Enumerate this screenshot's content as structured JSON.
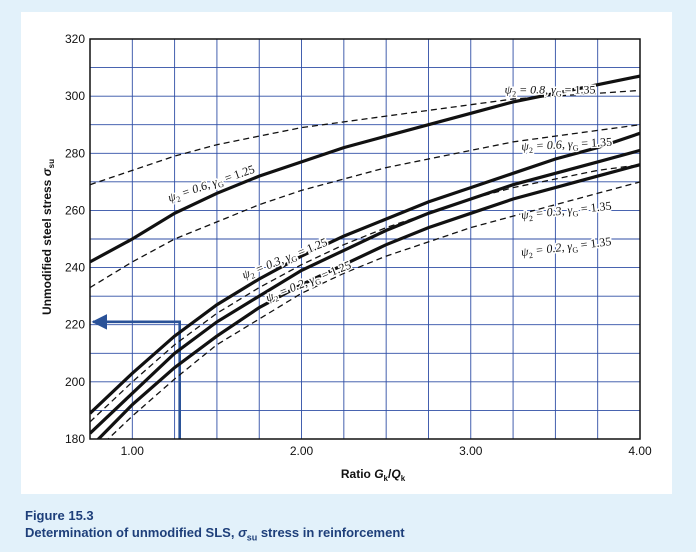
{
  "chart_data": {
    "type": "line",
    "title": "",
    "xlabel": "Ratio G_k/Q_k",
    "ylabel": "Unmodified steel stress σ_su",
    "xlim": [
      0.75,
      4.0
    ],
    "ylim": [
      180,
      320
    ],
    "x_ticks": [
      1.0,
      2.0,
      3.0,
      4.0
    ],
    "x_tick_labels": [
      "1.00",
      "2.00",
      "3.00",
      "4.00"
    ],
    "y_ticks": [
      180,
      200,
      220,
      240,
      260,
      280,
      300,
      320
    ],
    "y_tick_labels": [
      "180",
      "200",
      "220",
      "240",
      "260",
      "280",
      "300",
      "320"
    ],
    "grid": true,
    "x_minor_step": 0.25,
    "y_minor_step": 10,
    "series": [
      {
        "name": "ψ2 = 0.8, γG = 1.35",
        "style": "solid",
        "x": [
          0.75,
          1.0,
          1.25,
          1.5,
          1.75,
          2.0,
          2.25,
          2.5,
          2.75,
          3.0,
          3.25,
          3.5,
          3.75,
          4.0
        ],
        "y": [
          242,
          250,
          259,
          266,
          272,
          277,
          282,
          286,
          290,
          294,
          298,
          301,
          304,
          307
        ]
      },
      {
        "name": "ψ2 = 0.6, γG = 1.25",
        "style": "dashed",
        "x": [
          0.75,
          1.0,
          1.25,
          1.5,
          1.75,
          2.0,
          2.25,
          2.5,
          2.75,
          3.0,
          3.25,
          3.5,
          3.75,
          4.0
        ],
        "y": [
          269,
          274,
          279,
          283,
          286,
          289,
          291,
          293,
          295,
          297,
          299,
          300,
          301,
          302
        ]
      },
      {
        "name": "ψ2 = 0.6, γG = 1.35",
        "style": "solid",
        "x": [
          0.75,
          1.0,
          1.25,
          1.5,
          1.75,
          2.0,
          2.25,
          2.5,
          2.75,
          3.0,
          3.25,
          3.5,
          3.75,
          4.0
        ],
        "y": [
          189,
          203,
          216,
          227,
          236,
          244,
          251,
          257,
          263,
          268,
          273,
          278,
          282,
          287
        ]
      },
      {
        "name": "ψ2 = 0.3, γG = 1.25",
        "style": "dashed",
        "x": [
          0.75,
          1.0,
          1.25,
          1.5,
          1.75,
          2.0,
          2.25,
          2.5,
          2.75,
          3.0,
          3.25,
          3.5,
          3.75,
          4.0
        ],
        "y": [
          233,
          242,
          250,
          256,
          262,
          267,
          271,
          275,
          278,
          281,
          284,
          286,
          288,
          290
        ]
      },
      {
        "name": "ψ2 = 0.3, γG = 1.35",
        "style": "solid",
        "x": [
          0.75,
          1.0,
          1.25,
          1.5,
          1.75,
          2.0,
          2.25,
          2.5,
          2.75,
          3.0,
          3.25,
          3.5,
          3.75,
          4.0
        ],
        "y": [
          182,
          196,
          210,
          221,
          230,
          239,
          246,
          253,
          259,
          264,
          269,
          273,
          277,
          281
        ]
      },
      {
        "name": "ψ2 = 0.2, γG = 1.25",
        "style": "dashed",
        "x": [
          0.75,
          1.0,
          1.25,
          1.5,
          1.75,
          2.0,
          2.25,
          2.5,
          2.75,
          3.0,
          3.25,
          3.5,
          3.75,
          4.0
        ],
        "y": [
          186,
          200,
          213,
          224,
          233,
          241,
          248,
          254,
          259,
          264,
          268,
          271,
          274,
          276
        ]
      },
      {
        "name": "ψ2 = 0.2, γG = 1.35",
        "style": "dashed",
        "x": [
          0.75,
          1.0,
          1.25,
          1.5,
          1.75,
          2.0,
          2.25,
          2.5,
          2.75,
          3.0,
          3.25,
          3.5,
          3.75,
          4.0
        ],
        "y": [
          174,
          188,
          201,
          213,
          222,
          231,
          238,
          244,
          249,
          254,
          258,
          262,
          266,
          270
        ]
      },
      {
        "name": "",
        "style": "solid",
        "x": [
          0.75,
          1.0,
          1.25,
          1.5,
          1.75,
          2.0,
          2.25,
          2.5,
          2.75,
          3.0,
          3.25,
          3.5,
          3.75,
          4.0
        ],
        "y": [
          177,
          192,
          205,
          216,
          226,
          234,
          241,
          248,
          254,
          259,
          264,
          268,
          272,
          276
        ]
      }
    ],
    "annotations": [
      {
        "id": "a1",
        "parts": [
          "ψ",
          "2",
          " = 0.8, γ",
          "G",
          " = 1.35"
        ],
        "x": 3.2,
        "y": 301,
        "angle": 0
      },
      {
        "id": "a2",
        "parts": [
          "ψ",
          "2",
          " = 0.6, γ",
          "G",
          " = 1.35"
        ],
        "x": 3.3,
        "y": 281,
        "angle": -3
      },
      {
        "id": "a3",
        "parts": [
          "ψ",
          "2",
          " = 0.6, γ",
          "G",
          " = 1.25"
        ],
        "x": 1.22,
        "y": 263,
        "angle": -19
      },
      {
        "id": "a4",
        "parts": [
          "ψ",
          "2",
          " = 0.3, γ",
          "G",
          " = 1.35"
        ],
        "x": 3.3,
        "y": 257,
        "angle": -6
      },
      {
        "id": "a5",
        "parts": [
          "ψ",
          "2",
          " = 0.3, γ",
          "G",
          " = 1.25"
        ],
        "x": 1.66,
        "y": 236,
        "angle": -22
      },
      {
        "id": "a6",
        "parts": [
          "ψ",
          "2",
          " = 0.2, γ",
          "G",
          " = 1.25"
        ],
        "x": 1.8,
        "y": 228,
        "angle": -22
      },
      {
        "id": "a7",
        "parts": [
          "ψ",
          "2",
          " = 0.2, γ",
          "G",
          " = 1.35"
        ],
        "x": 3.3,
        "y": 244,
        "angle": -7
      }
    ],
    "reading": {
      "x": 1.28,
      "y": 221
    }
  },
  "axis": {
    "xlabel_parts": [
      "Ratio ",
      "G",
      "k",
      "/",
      "Q",
      "k"
    ],
    "ylabel_parts": [
      "Unmodified steel stress ",
      "σ",
      "su"
    ]
  },
  "caption": {
    "figure": "Figure 15.3",
    "text_before": "Determination of unmodified SLS, ",
    "sigma": "σ",
    "sub": "su",
    "text_after": " stress in reinforcement"
  },
  "colors": {
    "background": "#e2f1fa",
    "grid": "#2f4ea5",
    "arrow": "#2a5298",
    "caption": "#1e3f7a",
    "curve": "#111111"
  }
}
